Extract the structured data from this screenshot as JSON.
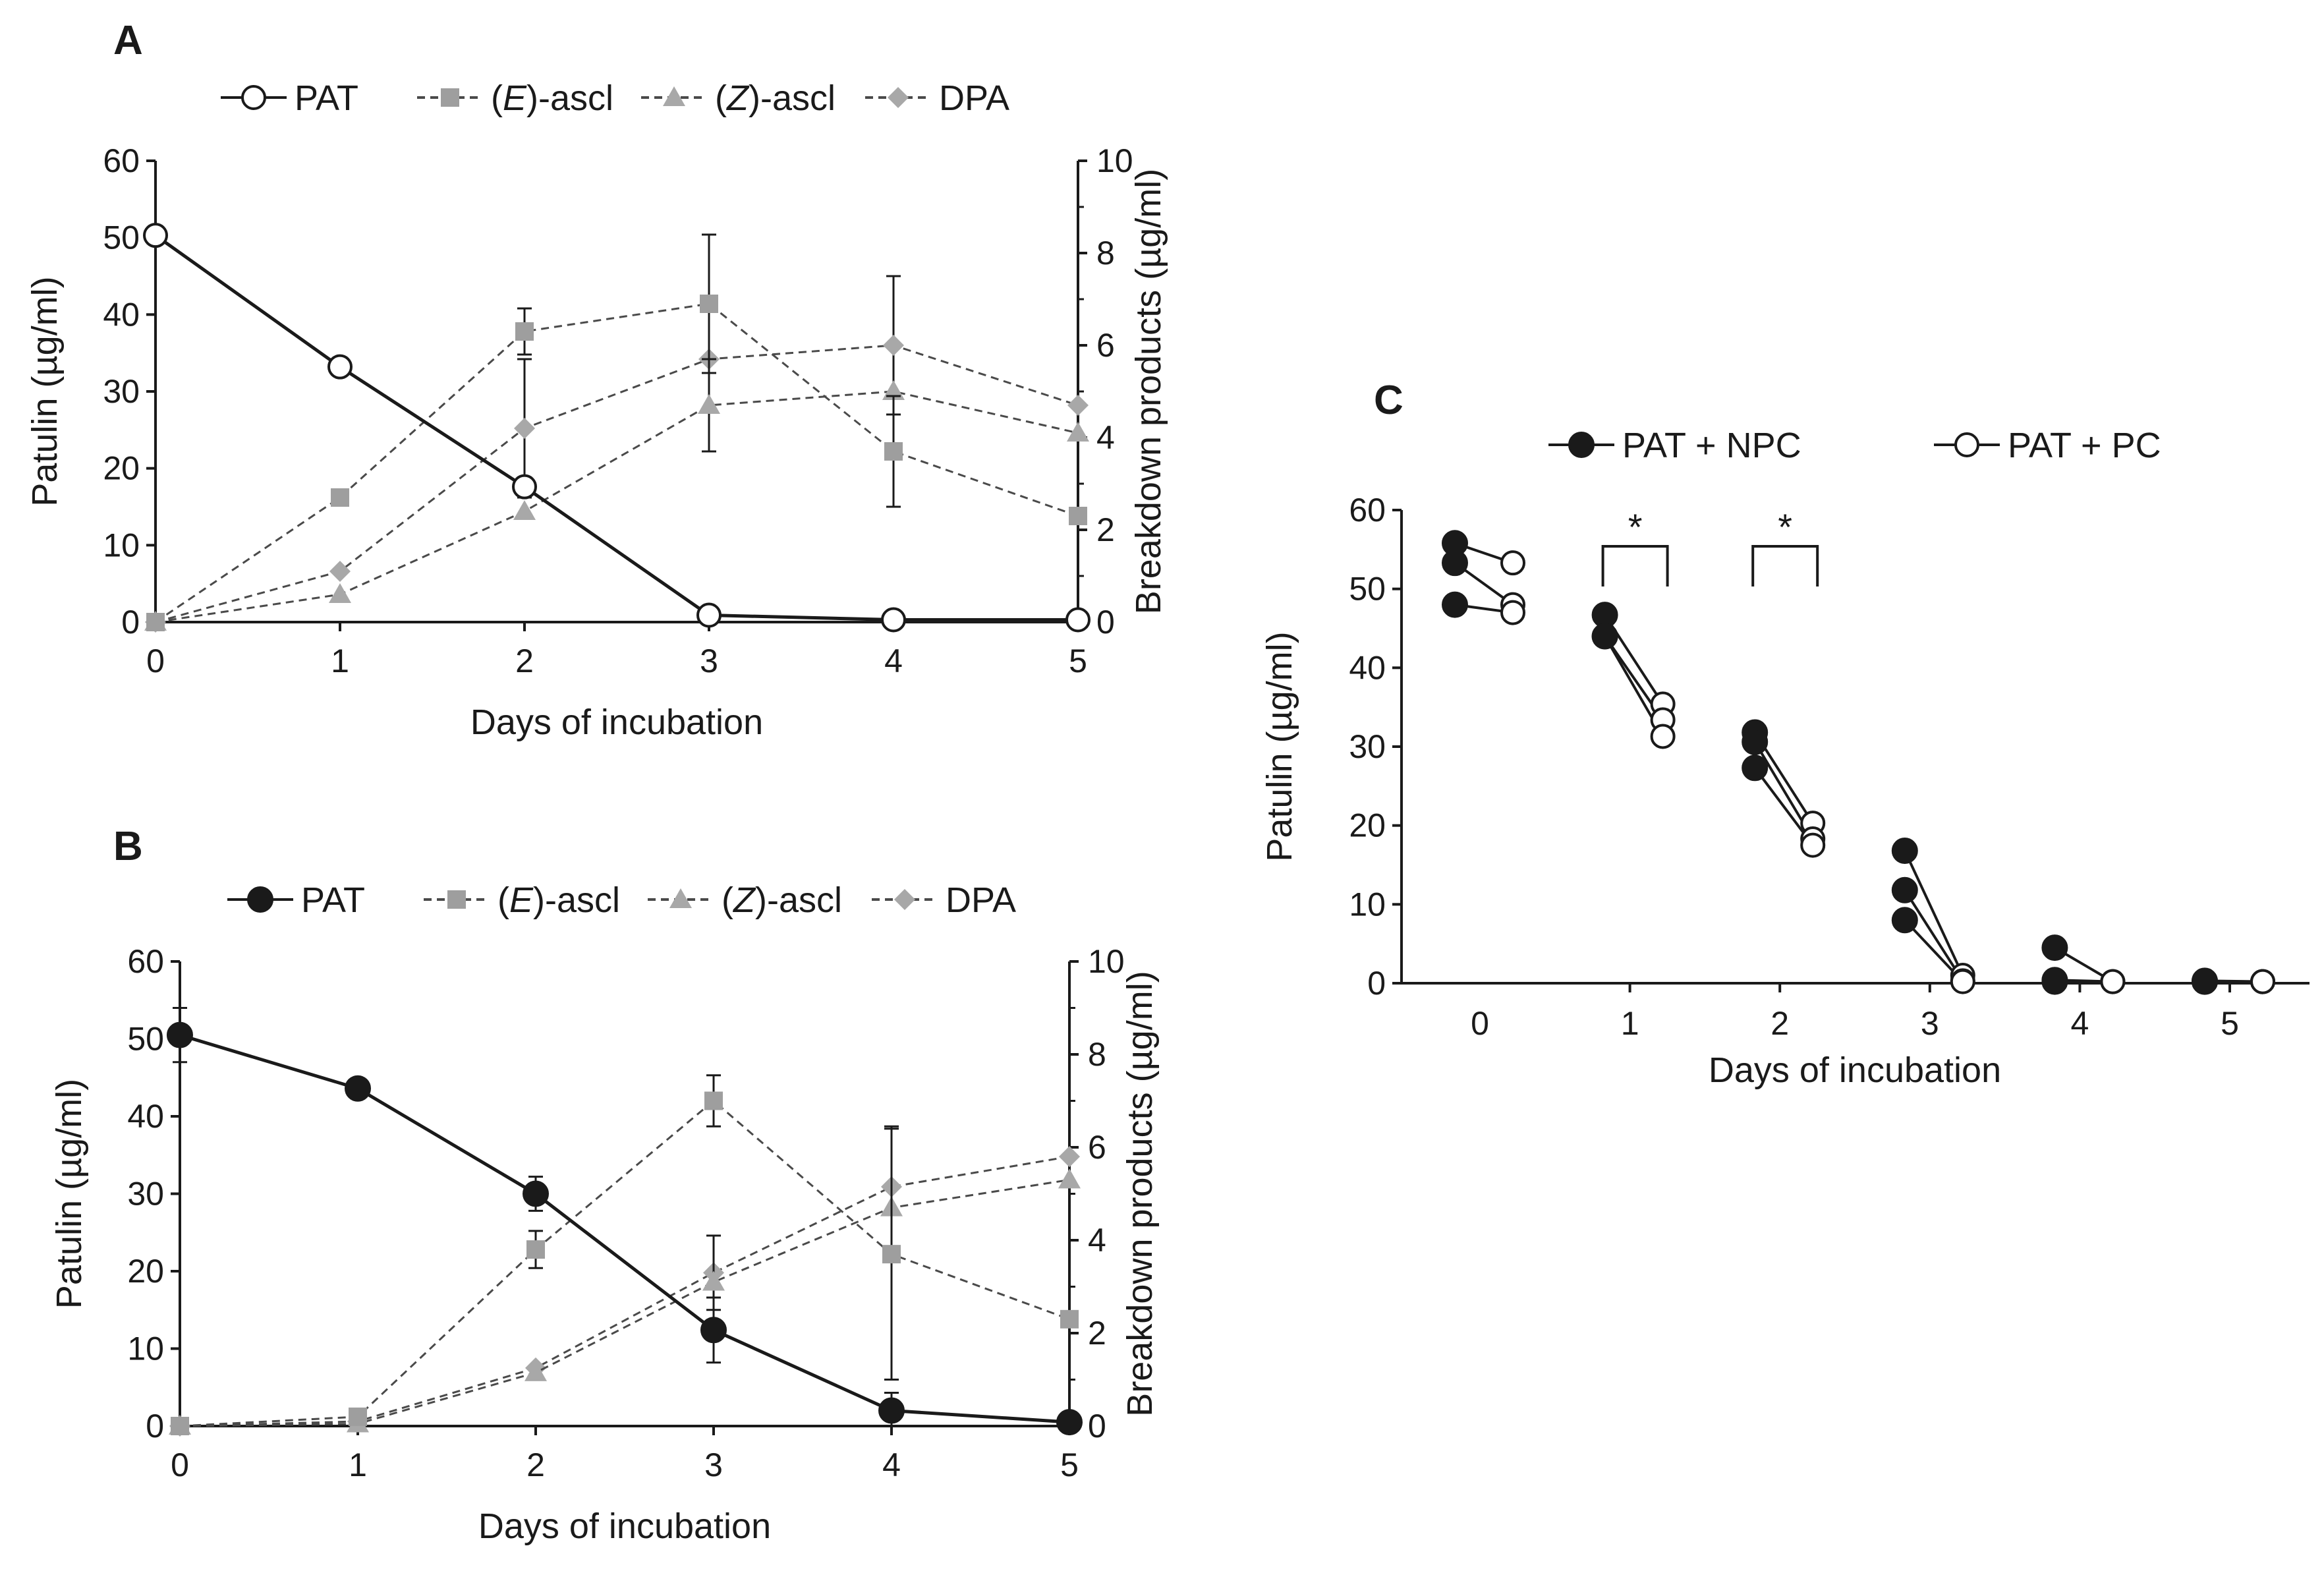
{
  "chart_data": [
    {
      "panel": "A",
      "type": "line",
      "xlabel": "Days of incubation",
      "ylabel": "Patulin (µg/ml)",
      "y2label": "Breakdown products (µg/ml)",
      "x": [
        0,
        1,
        2,
        3,
        4,
        5
      ],
      "xticks": [
        "0",
        "1",
        "2",
        "3",
        "4",
        "5"
      ],
      "ylim": [
        0,
        60
      ],
      "yticks": [
        "0",
        "10",
        "20",
        "30",
        "40",
        "50",
        "60"
      ],
      "y2lim": [
        0,
        10
      ],
      "y2ticks": [
        "0",
        "2",
        "4",
        "6",
        "8",
        "10"
      ],
      "legend_position": "top",
      "series": [
        {
          "name": "PAT",
          "axis": "left",
          "marker": "open-circle",
          "line": "solid",
          "color": "#1a1a1a",
          "values": [
            50.3,
            33.2,
            17.6,
            0.9,
            0.3,
            0.3
          ],
          "err": [
            0,
            0,
            0,
            0,
            0,
            0
          ]
        },
        {
          "name": "(E)-ascl",
          "name_pre": "(",
          "name_it": "E",
          "name_post": ")-ascl",
          "axis": "right",
          "marker": "square",
          "line": "dashed",
          "color": "#9e9e9e",
          "values": [
            0,
            2.7,
            6.3,
            6.9,
            3.7,
            2.3
          ],
          "err": [
            0,
            0,
            0.5,
            1.5,
            1.2,
            0
          ]
        },
        {
          "name": "(Z)-ascl",
          "name_pre": "(",
          "name_it": "Z",
          "name_post": ")-ascl",
          "axis": "right",
          "marker": "triangle",
          "line": "dashed",
          "color": "#a8a8a8",
          "values": [
            0,
            0.6,
            2.4,
            4.7,
            5.0,
            4.1
          ],
          "err": [
            0,
            0,
            0,
            1.0,
            0,
            0
          ]
        },
        {
          "name": "DPA",
          "axis": "right",
          "marker": "diamond",
          "line": "dashed",
          "color": "#a8a8a8",
          "values": [
            0,
            1.1,
            4.2,
            5.7,
            6.0,
            4.7
          ],
          "err": [
            0,
            0,
            1.5,
            0,
            1.5,
            0
          ]
        }
      ]
    },
    {
      "panel": "B",
      "type": "line",
      "xlabel": "Days of incubation",
      "ylabel": "Patulin (µg/ml)",
      "y2label": "Breakdown products (µg/ml)",
      "x": [
        0,
        1,
        2,
        3,
        4,
        5
      ],
      "xticks": [
        "0",
        "1",
        "2",
        "3",
        "4",
        "5"
      ],
      "ylim": [
        0,
        60
      ],
      "yticks": [
        "0",
        "10",
        "20",
        "30",
        "40",
        "50",
        "60"
      ],
      "y2lim": [
        0,
        10
      ],
      "y2ticks": [
        "0",
        "2",
        "4",
        "6",
        "8",
        "10"
      ],
      "legend_position": "top",
      "series": [
        {
          "name": "PAT",
          "axis": "left",
          "marker": "filled-circle",
          "line": "solid",
          "color": "#1a1a1a",
          "values": [
            50.5,
            43.6,
            30.0,
            12.4,
            2.0,
            0.5
          ],
          "err": [
            3.5,
            0,
            2.2,
            4.2,
            2.3,
            0
          ]
        },
        {
          "name": "(E)-ascl",
          "name_pre": "(",
          "name_it": "E",
          "name_post": ")-ascl",
          "axis": "right",
          "marker": "square",
          "line": "dashed",
          "color": "#9e9e9e",
          "values": [
            0,
            0.2,
            3.8,
            7.0,
            3.7,
            2.3
          ],
          "err": [
            0,
            0,
            0.4,
            0.55,
            2.7,
            0
          ]
        },
        {
          "name": "(Z)-ascl",
          "name_pre": "(",
          "name_it": "Z",
          "name_post": ")-ascl",
          "axis": "right",
          "marker": "triangle",
          "line": "dashed",
          "color": "#a8a8a8",
          "values": [
            0,
            0.05,
            1.15,
            3.1,
            4.7,
            5.3
          ],
          "err": [
            0,
            0,
            0,
            1.0,
            0,
            0
          ]
        },
        {
          "name": "DPA",
          "axis": "right",
          "marker": "diamond",
          "line": "dashed",
          "color": "#a8a8a8",
          "values": [
            0,
            0.1,
            1.25,
            3.3,
            5.15,
            5.8
          ],
          "err": [
            0,
            0,
            0,
            0.8,
            1.3,
            0
          ]
        }
      ]
    },
    {
      "panel": "C",
      "type": "scatter",
      "xlabel": "Days of incubation",
      "ylabel": "Patulin (µg/ml)",
      "x": [
        0,
        1,
        2,
        3,
        4,
        5
      ],
      "xticks": [
        "0",
        "1",
        "2",
        "3",
        "4",
        "5"
      ],
      "ylim": [
        0,
        60
      ],
      "yticks": [
        "0",
        "10",
        "20",
        "30",
        "40",
        "50",
        "60"
      ],
      "legend_position": "top",
      "series": [
        {
          "name": "PAT + NPC",
          "marker": "filled-circle"
        },
        {
          "name": "PAT + PC",
          "marker": "open-circle"
        }
      ],
      "pairs": [
        {
          "day": 0,
          "npc": [
            55.8,
            53.3,
            48.0
          ],
          "pc": [
            53.3,
            48.0,
            47.0
          ]
        },
        {
          "day": 1,
          "npc": [
            46.7,
            44.0,
            44.0
          ],
          "pc": [
            35.4,
            33.4,
            31.3
          ]
        },
        {
          "day": 2,
          "npc": [
            31.8,
            30.6,
            27.3
          ],
          "pc": [
            20.3,
            18.3,
            17.5
          ]
        },
        {
          "day": 3,
          "npc": [
            16.8,
            11.8,
            8.0
          ],
          "pc": [
            1.0,
            0.3,
            0.2
          ]
        },
        {
          "day": 4,
          "npc": [
            4.5,
            0.4,
            0.2
          ],
          "pc": [
            0.2,
            0.2,
            0.2
          ]
        },
        {
          "day": 5,
          "npc": [
            0.3,
            0.2,
            0.2
          ],
          "pc": [
            0.2,
            0.2,
            0.2
          ]
        }
      ],
      "annotations": [
        {
          "text": "*",
          "day": 1,
          "type": "significance-bracket"
        },
        {
          "text": "*",
          "day": 2,
          "type": "significance-bracket"
        }
      ]
    }
  ]
}
